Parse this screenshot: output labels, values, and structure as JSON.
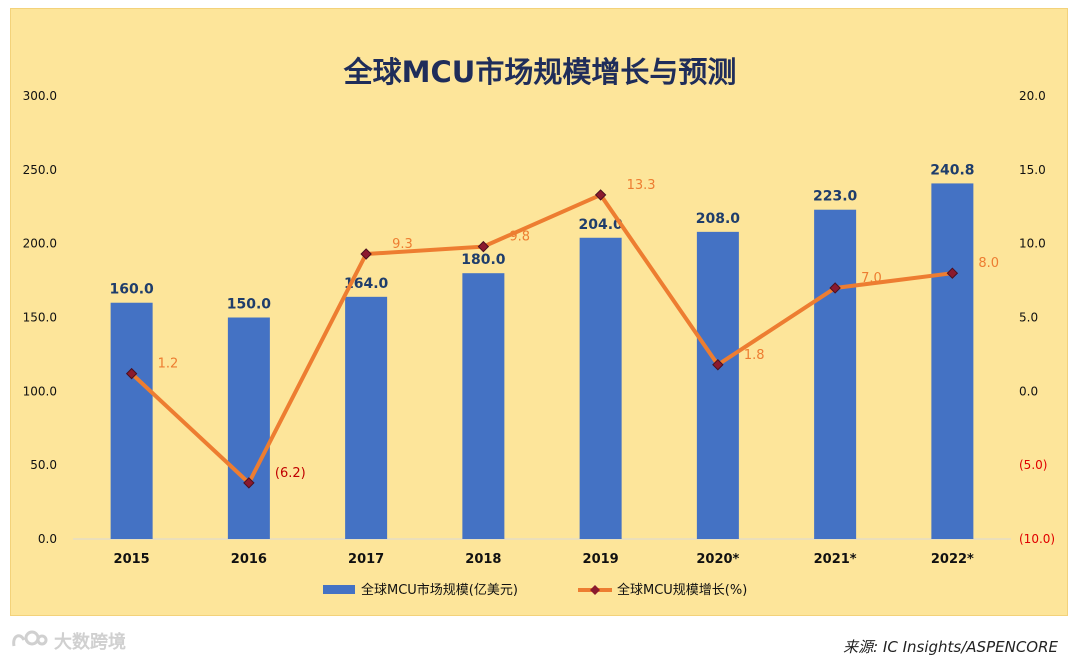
{
  "chart_data": {
    "type": "bar+line",
    "title": "全球MCU市场规模增长与预测",
    "categories": [
      "2015",
      "2016",
      "2017",
      "2018",
      "2019",
      "2020*",
      "2021*",
      "2022*"
    ],
    "series": [
      {
        "name": "全球MCU市场规模(亿美元)",
        "type": "bar",
        "axis": "left",
        "color": "#4472c4",
        "values": [
          160.0,
          150.0,
          164.0,
          180.0,
          204.0,
          208.0,
          223.0,
          240.8
        ],
        "labels": [
          "160.0",
          "150.0",
          "164.0",
          "180.0",
          "204.0",
          "208.0",
          "223.0",
          "240.8"
        ]
      },
      {
        "name": "全球MCU规模增长(%)",
        "type": "line",
        "axis": "right",
        "color": "#ed7d31",
        "marker_color": "#8b1a2e",
        "values": [
          1.2,
          -6.2,
          9.3,
          9.8,
          13.3,
          1.8,
          7.0,
          8.0
        ],
        "labels": [
          "1.2",
          "(6.2)",
          "9.3",
          "9.8",
          "13.3",
          "1.8",
          "7.0",
          "8.0"
        ]
      }
    ],
    "y_left": {
      "min": 0,
      "max": 300,
      "ticks": [
        "0.0",
        "50.0",
        "100.0",
        "150.0",
        "200.0",
        "250.0",
        "300.0"
      ]
    },
    "y_right": {
      "min": -10,
      "max": 20,
      "ticks": [
        "(10.0)",
        "(5.0)",
        "0.0",
        "5.0",
        "10.0",
        "15.0",
        "20.0"
      ],
      "negative_color": "#e00000"
    },
    "grid": false,
    "legend": "bottom"
  },
  "footer": {
    "source": "来源:  IC Insights/ASPENCORE",
    "watermark": "大数跨境"
  }
}
